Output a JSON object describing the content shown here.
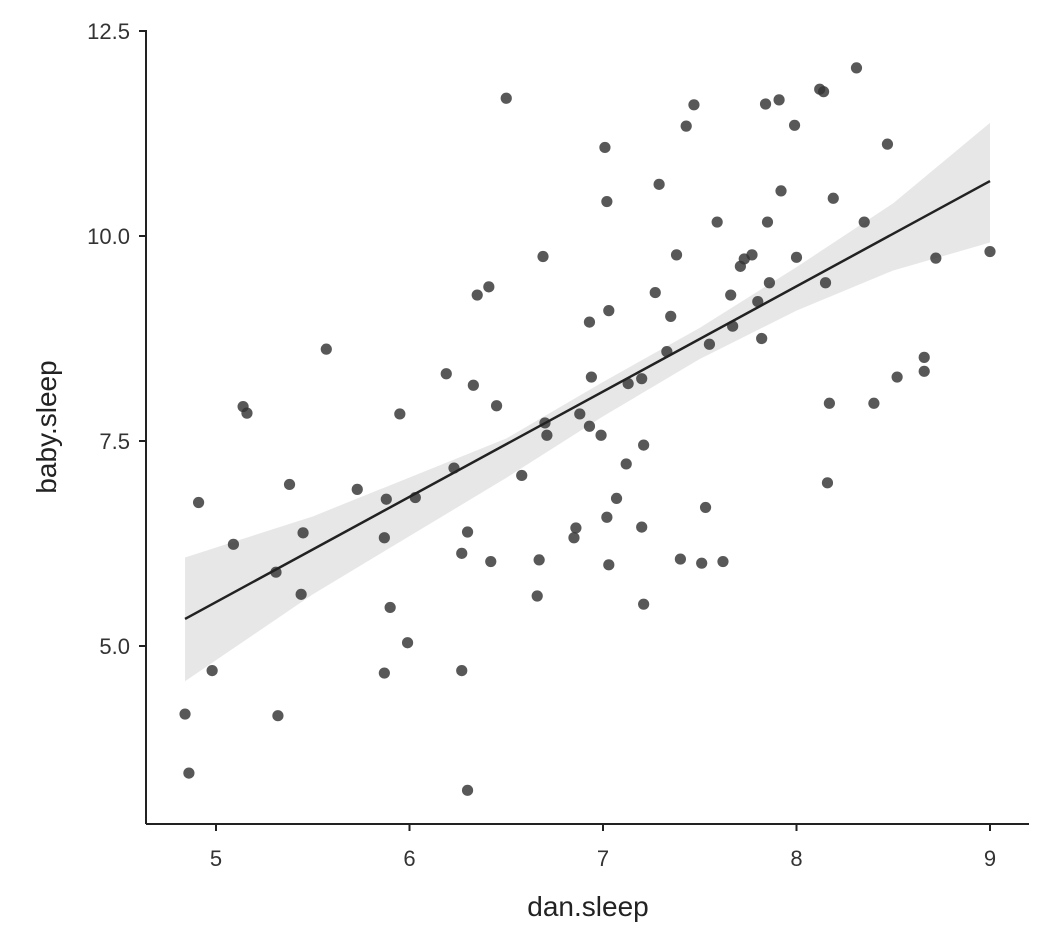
{
  "chart_data": {
    "type": "scatter",
    "title": "",
    "xlabel": "dan.sleep",
    "ylabel": "baby.sleep",
    "xlim": [
      4.65,
      9.2
    ],
    "ylim": [
      2.7,
      12.5
    ],
    "x_ticks": [
      5,
      6,
      7,
      8,
      9
    ],
    "y_ticks": [
      5.0,
      7.5,
      10.0,
      12.5
    ],
    "x_tick_labels": [
      "5",
      "6",
      "7",
      "8",
      "9"
    ],
    "y_tick_labels": [
      "5.0",
      "7.5",
      "10.0",
      "12.5"
    ],
    "grid": false,
    "legend": "none",
    "colors": {
      "points": "#333333",
      "line": "#222222",
      "band": "#d9d9d9"
    },
    "points": [
      [
        4.84,
        4.17
      ],
      [
        4.86,
        3.45
      ],
      [
        4.91,
        6.75
      ],
      [
        4.98,
        4.7
      ],
      [
        5.09,
        6.24
      ],
      [
        5.14,
        7.92
      ],
      [
        5.16,
        7.84
      ],
      [
        5.31,
        5.9
      ],
      [
        5.32,
        4.15
      ],
      [
        5.38,
        6.97
      ],
      [
        5.44,
        5.63
      ],
      [
        5.45,
        6.38
      ],
      [
        5.57,
        8.62
      ],
      [
        5.73,
        6.91
      ],
      [
        5.87,
        4.67
      ],
      [
        5.87,
        6.32
      ],
      [
        5.88,
        6.79
      ],
      [
        5.9,
        5.47
      ],
      [
        5.95,
        7.83
      ],
      [
        5.99,
        5.04
      ],
      [
        6.03,
        6.81
      ],
      [
        6.19,
        8.32
      ],
      [
        6.23,
        7.17
      ],
      [
        6.27,
        4.7
      ],
      [
        6.27,
        6.13
      ],
      [
        6.3,
        3.24
      ],
      [
        6.3,
        6.39
      ],
      [
        6.33,
        8.18
      ],
      [
        6.35,
        9.28
      ],
      [
        6.41,
        9.38
      ],
      [
        6.42,
        6.03
      ],
      [
        6.45,
        7.93
      ],
      [
        6.5,
        11.68
      ],
      [
        6.58,
        7.08
      ],
      [
        6.66,
        5.61
      ],
      [
        6.67,
        6.05
      ],
      [
        6.69,
        9.75
      ],
      [
        6.7,
        7.72
      ],
      [
        6.71,
        7.57
      ],
      [
        6.85,
        6.32
      ],
      [
        6.86,
        6.44
      ],
      [
        6.88,
        7.83
      ],
      [
        6.93,
        8.95
      ],
      [
        6.93,
        7.68
      ],
      [
        6.94,
        8.28
      ],
      [
        6.99,
        7.57
      ],
      [
        7.01,
        11.08
      ],
      [
        7.02,
        6.57
      ],
      [
        7.02,
        10.42
      ],
      [
        7.03,
        9.09
      ],
      [
        7.03,
        5.99
      ],
      [
        7.07,
        6.8
      ],
      [
        7.12,
        7.22
      ],
      [
        7.13,
        8.2
      ],
      [
        7.2,
        8.26
      ],
      [
        7.2,
        6.45
      ],
      [
        7.21,
        5.51
      ],
      [
        7.21,
        7.45
      ],
      [
        7.27,
        9.31
      ],
      [
        7.29,
        10.63
      ],
      [
        7.33,
        8.59
      ],
      [
        7.35,
        9.02
      ],
      [
        7.38,
        9.77
      ],
      [
        7.4,
        6.06
      ],
      [
        7.43,
        11.34
      ],
      [
        7.47,
        11.6
      ],
      [
        7.51,
        6.01
      ],
      [
        7.53,
        6.69
      ],
      [
        7.55,
        8.68
      ],
      [
        7.59,
        10.17
      ],
      [
        7.62,
        6.03
      ],
      [
        7.66,
        9.28
      ],
      [
        7.67,
        8.9
      ],
      [
        7.71,
        9.63
      ],
      [
        7.73,
        9.72
      ],
      [
        7.77,
        9.77
      ],
      [
        7.8,
        9.2
      ],
      [
        7.82,
        8.75
      ],
      [
        7.84,
        11.61
      ],
      [
        7.85,
        10.17
      ],
      [
        7.86,
        9.43
      ],
      [
        7.91,
        11.66
      ],
      [
        7.92,
        10.55
      ],
      [
        7.99,
        11.35
      ],
      [
        8.0,
        9.74
      ],
      [
        8.12,
        11.79
      ],
      [
        8.14,
        11.76
      ],
      [
        8.15,
        9.43
      ],
      [
        8.16,
        6.99
      ],
      [
        8.17,
        7.96
      ],
      [
        8.19,
        10.46
      ],
      [
        8.31,
        12.05
      ],
      [
        8.35,
        10.17
      ],
      [
        8.4,
        7.96
      ],
      [
        8.47,
        11.12
      ],
      [
        8.52,
        8.28
      ],
      [
        8.66,
        8.52
      ],
      [
        8.66,
        8.35
      ],
      [
        8.72,
        9.73
      ],
      [
        9.0,
        9.81
      ]
    ],
    "fit_line": {
      "x": [
        4.84,
        9.0
      ],
      "y": [
        5.33,
        10.67
      ]
    },
    "confidence_band": {
      "x": [
        4.84,
        5.5,
        6.5,
        7.0,
        7.5,
        8.0,
        8.5,
        9.0
      ],
      "upper": [
        6.08,
        6.58,
        7.53,
        8.22,
        8.88,
        9.62,
        10.4,
        11.38
      ],
      "lower": [
        4.57,
        5.63,
        7.05,
        7.8,
        8.5,
        9.09,
        9.58,
        9.92
      ]
    }
  }
}
